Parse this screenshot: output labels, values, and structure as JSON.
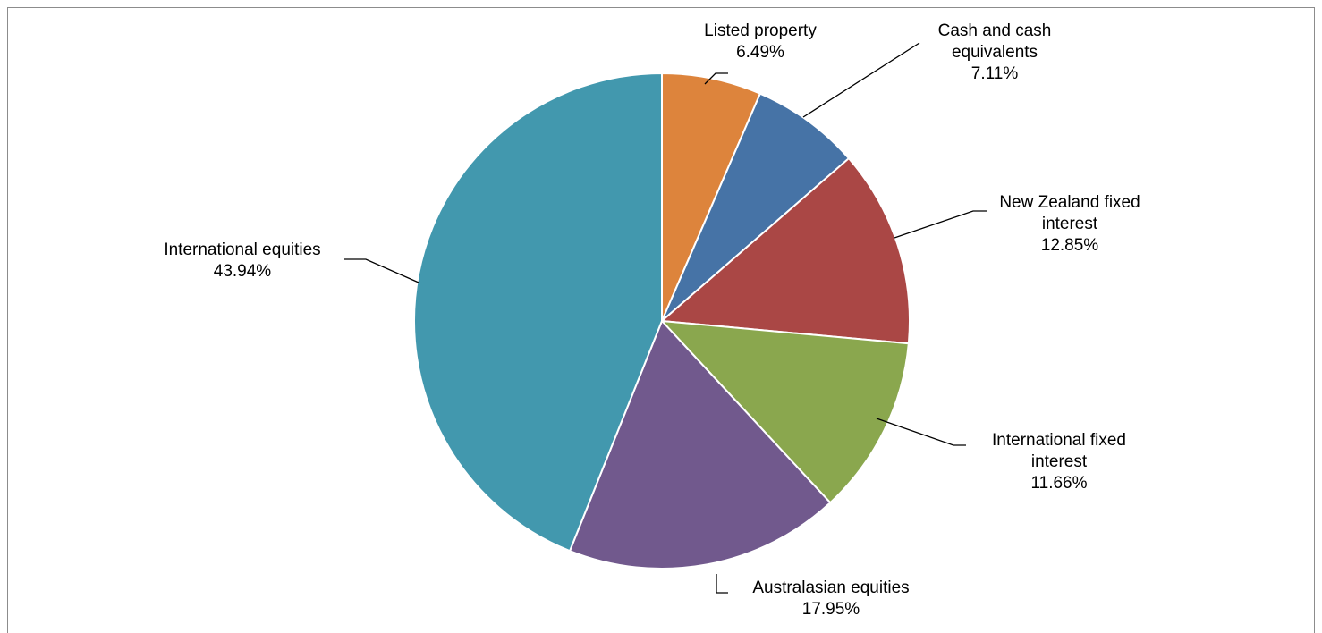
{
  "chart_data": {
    "type": "pie",
    "title": "",
    "slices": [
      {
        "label_lines": [
          "Listed property"
        ],
        "value": 6.49,
        "value_label": "6.49%",
        "color": "#dd843c"
      },
      {
        "label_lines": [
          "Cash and cash",
          "equivalents"
        ],
        "value": 7.11,
        "value_label": "7.11%",
        "color": "#4673a6"
      },
      {
        "label_lines": [
          "New Zealand fixed",
          "interest"
        ],
        "value": 12.85,
        "value_label": "12.85%",
        "color": "#aa4745"
      },
      {
        "label_lines": [
          "International fixed",
          "interest"
        ],
        "value": 11.66,
        "value_label": "11.66%",
        "color": "#8aa74e"
      },
      {
        "label_lines": [
          "Australasian equities"
        ],
        "value": 17.95,
        "value_label": "17.95%",
        "color": "#71598d"
      },
      {
        "label_lines": [
          "International equities"
        ],
        "value": 43.94,
        "value_label": "43.94%",
        "color": "#4298ae"
      }
    ],
    "start_angle_deg": 0,
    "direction": "clockwise",
    "legend": "none",
    "data_labels": "outside with leader lines"
  }
}
